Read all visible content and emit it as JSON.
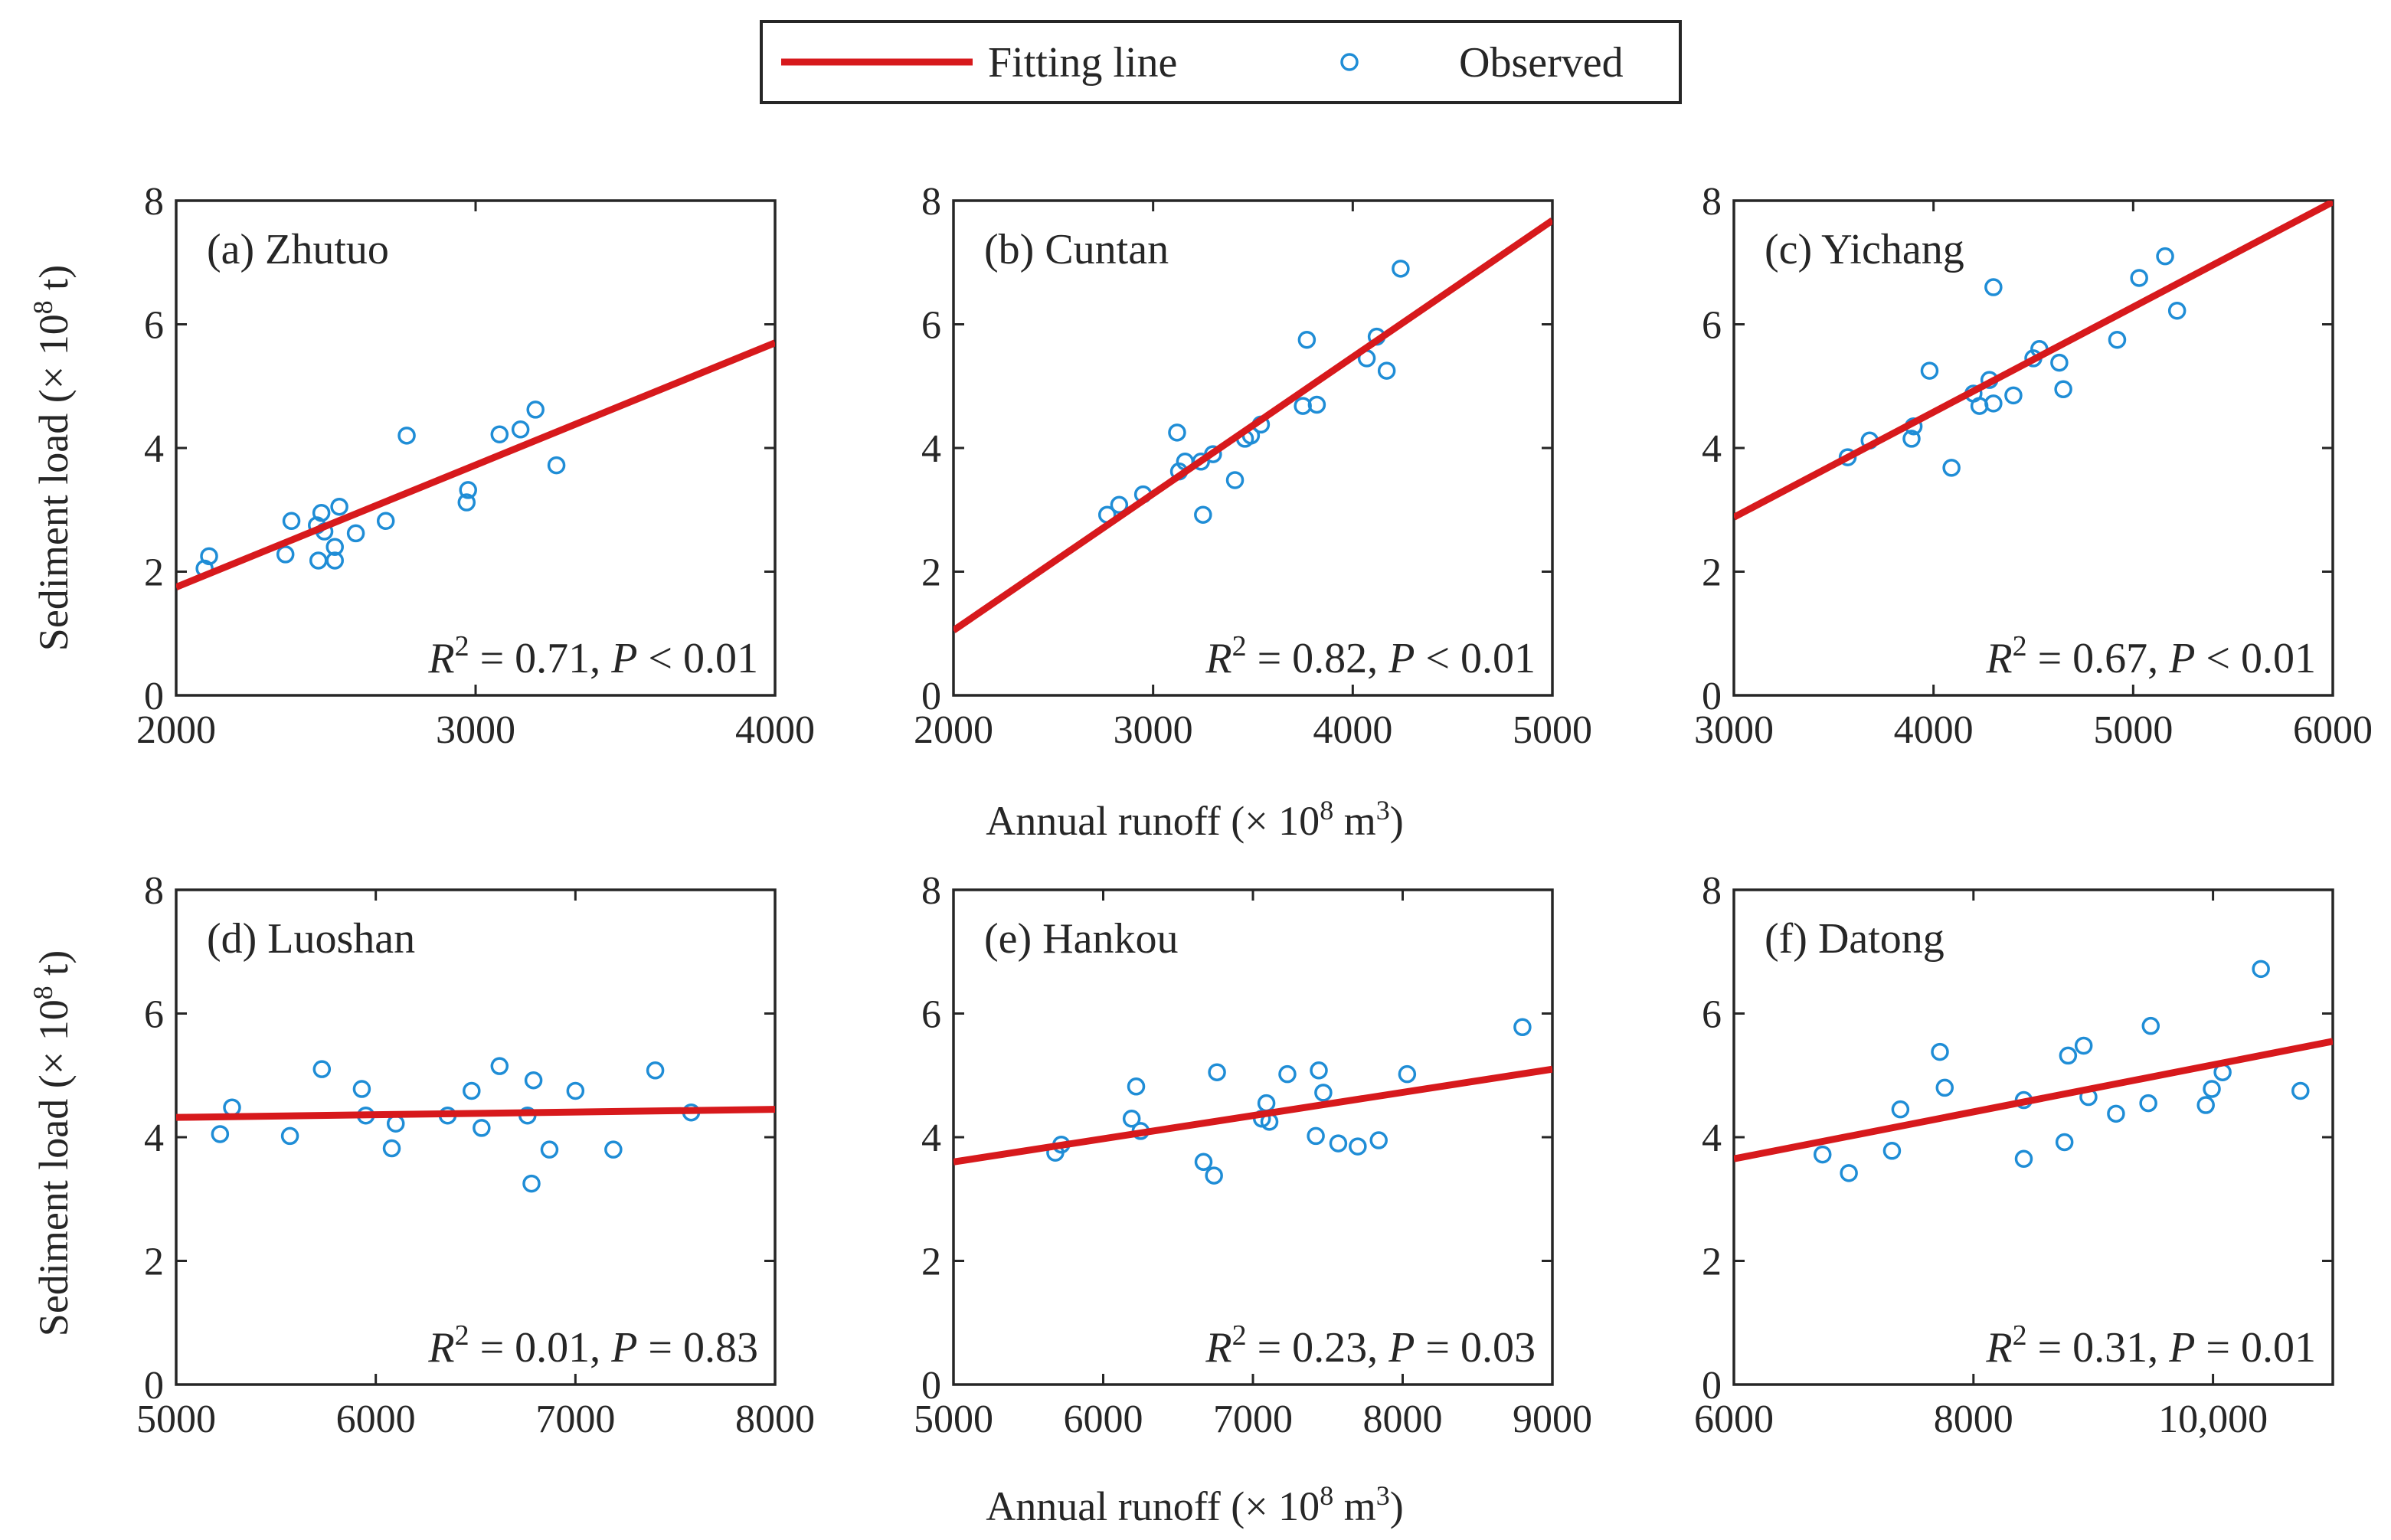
{
  "legend": {
    "fitting_label": "Fitting line",
    "observed_label": "Observed",
    "placement": "top-center"
  },
  "colors": {
    "fit_line": "#d7191c",
    "observed": "#1f8dd6",
    "axes": "#262626"
  },
  "axis_labels": {
    "y_prefix": "Sediment load (× 10",
    "y_sup": "8",
    "y_suffix": " t)",
    "x_prefix": "Annual runoff (× 10",
    "x_sup": "8",
    "x_mid": " m",
    "x_sup2": "3",
    "x_suffix": ")"
  },
  "chart_data": [
    {
      "type": "scatter",
      "title": "(a) Zhutuo",
      "xlim": [
        2000,
        4000
      ],
      "ylim": [
        0,
        8
      ],
      "xticks": [
        2000,
        3000,
        4000
      ],
      "xtick_labels": [
        "2000",
        "3000",
        "4000"
      ],
      "yticks": [
        0,
        2,
        4,
        6,
        8
      ],
      "ytick_labels": [
        "0",
        "2",
        "4",
        "6",
        "8"
      ],
      "fit": {
        "x": [
          2000,
          4000
        ],
        "y": [
          1.75,
          5.7
        ]
      },
      "r2_text": "0.71",
      "p_op": "<",
      "p_text": "0.01",
      "points": [
        [
          2095,
          2.05
        ],
        [
          2110,
          2.25
        ],
        [
          2365,
          2.28
        ],
        [
          2385,
          2.82
        ],
        [
          2470,
          2.75
        ],
        [
          2485,
          2.95
        ],
        [
          2495,
          2.65
        ],
        [
          2475,
          2.18
        ],
        [
          2530,
          2.4
        ],
        [
          2545,
          3.05
        ],
        [
          2530,
          2.18
        ],
        [
          2600,
          2.62
        ],
        [
          2700,
          2.82
        ],
        [
          2770,
          4.2
        ],
        [
          2970,
          3.12
        ],
        [
          2975,
          3.32
        ],
        [
          3080,
          4.22
        ],
        [
          3150,
          4.3
        ],
        [
          3200,
          4.62
        ],
        [
          3270,
          3.72
        ]
      ]
    },
    {
      "type": "scatter",
      "title": "(b) Cuntan",
      "xlim": [
        2000,
        5000
      ],
      "ylim": [
        0,
        8
      ],
      "xticks": [
        2000,
        3000,
        4000,
        5000
      ],
      "xtick_labels": [
        "2000",
        "3000",
        "4000",
        "5000"
      ],
      "yticks": [
        0,
        2,
        4,
        6,
        8
      ],
      "ytick_labels": [
        "0",
        "2",
        "4",
        "6",
        "8"
      ],
      "fit": {
        "x": [
          2000,
          5000
        ],
        "y": [
          1.05,
          7.68
        ]
      },
      "r2_text": "0.82",
      "p_op": "<",
      "p_text": "0.01",
      "points": [
        [
          2770,
          2.92
        ],
        [
          2830,
          3.08
        ],
        [
          2950,
          3.25
        ],
        [
          3120,
          4.25
        ],
        [
          3130,
          3.62
        ],
        [
          3160,
          3.78
        ],
        [
          3240,
          3.78
        ],
        [
          3250,
          2.92
        ],
        [
          3300,
          3.9
        ],
        [
          3410,
          3.48
        ],
        [
          3460,
          4.15
        ],
        [
          3490,
          4.2
        ],
        [
          3540,
          4.38
        ],
        [
          3750,
          4.68
        ],
        [
          3770,
          5.75
        ],
        [
          3820,
          4.7
        ],
        [
          4070,
          5.45
        ],
        [
          4120,
          5.8
        ],
        [
          4170,
          5.25
        ],
        [
          4240,
          6.9
        ]
      ]
    },
    {
      "type": "scatter",
      "title": "(c) Yichang",
      "xlim": [
        3000,
        6000
      ],
      "ylim": [
        0,
        8
      ],
      "xticks": [
        3000,
        4000,
        5000,
        6000
      ],
      "xtick_labels": [
        "3000",
        "4000",
        "5000",
        "6000"
      ],
      "yticks": [
        0,
        2,
        4,
        6,
        8
      ],
      "ytick_labels": [
        "0",
        "2",
        "4",
        "6",
        "8"
      ],
      "fit": {
        "x": [
          3000,
          6000
        ],
        "y": [
          2.88,
          7.98
        ]
      },
      "r2_text": "0.67",
      "p_op": "<",
      "p_text": "0.01",
      "points": [
        [
          3570,
          3.85
        ],
        [
          3680,
          4.12
        ],
        [
          3890,
          4.15
        ],
        [
          3900,
          4.35
        ],
        [
          3980,
          5.25
        ],
        [
          4090,
          3.68
        ],
        [
          4200,
          4.88
        ],
        [
          4230,
          4.68
        ],
        [
          4280,
          5.1
        ],
        [
          4300,
          4.72
        ],
        [
          4300,
          6.6
        ],
        [
          4400,
          4.85
        ],
        [
          4500,
          5.45
        ],
        [
          4530,
          5.6
        ],
        [
          4630,
          5.38
        ],
        [
          4650,
          4.95
        ],
        [
          4920,
          5.75
        ],
        [
          5030,
          6.75
        ],
        [
          5160,
          7.1
        ],
        [
          5220,
          6.22
        ]
      ]
    },
    {
      "type": "scatter",
      "title": "(d) Luoshan",
      "xlim": [
        5000,
        8000
      ],
      "ylim": [
        0,
        8
      ],
      "xticks": [
        5000,
        6000,
        7000,
        8000
      ],
      "xtick_labels": [
        "5000",
        "6000",
        "7000",
        "8000"
      ],
      "yticks": [
        0,
        2,
        4,
        6,
        8
      ],
      "ytick_labels": [
        "0",
        "2",
        "4",
        "6",
        "8"
      ],
      "fit": {
        "x": [
          5000,
          8000
        ],
        "y": [
          4.32,
          4.45
        ]
      },
      "r2_text": "0.01",
      "p_op": "=",
      "p_text": "0.83",
      "points": [
        [
          5220,
          4.05
        ],
        [
          5280,
          4.48
        ],
        [
          5570,
          4.02
        ],
        [
          5730,
          5.1
        ],
        [
          5930,
          4.78
        ],
        [
          5950,
          4.35
        ],
        [
          6080,
          3.82
        ],
        [
          6100,
          4.22
        ],
        [
          6360,
          4.35
        ],
        [
          6480,
          4.75
        ],
        [
          6530,
          4.15
        ],
        [
          6620,
          5.15
        ],
        [
          6760,
          4.35
        ],
        [
          6790,
          4.92
        ],
        [
          6780,
          3.25
        ],
        [
          6870,
          3.8
        ],
        [
          7000,
          4.75
        ],
        [
          7190,
          3.8
        ],
        [
          7400,
          5.08
        ],
        [
          7580,
          4.4
        ]
      ]
    },
    {
      "type": "scatter",
      "title": "(e) Hankou",
      "xlim": [
        5000,
        9000
      ],
      "ylim": [
        0,
        8
      ],
      "xticks": [
        5000,
        6000,
        7000,
        8000,
        9000
      ],
      "xtick_labels": [
        "5000",
        "6000",
        "7000",
        "8000",
        "9000"
      ],
      "yticks": [
        0,
        2,
        4,
        6,
        8
      ],
      "ytick_labels": [
        "0",
        "2",
        "4",
        "6",
        "8"
      ],
      "fit": {
        "x": [
          5000,
          9000
        ],
        "y": [
          3.6,
          5.1
        ]
      },
      "r2_text": "0.23",
      "p_op": "=",
      "p_text": "0.03",
      "points": [
        [
          5680,
          3.75
        ],
        [
          5720,
          3.88
        ],
        [
          6190,
          4.3
        ],
        [
          6220,
          4.82
        ],
        [
          6250,
          4.1
        ],
        [
          6670,
          3.6
        ],
        [
          6740,
          3.38
        ],
        [
          6760,
          5.05
        ],
        [
          7060,
          4.3
        ],
        [
          7090,
          4.55
        ],
        [
          7110,
          4.25
        ],
        [
          7230,
          5.02
        ],
        [
          7420,
          4.02
        ],
        [
          7440,
          5.08
        ],
        [
          7470,
          4.72
        ],
        [
          7570,
          3.9
        ],
        [
          7700,
          3.85
        ],
        [
          7840,
          3.95
        ],
        [
          8030,
          5.02
        ],
        [
          8800,
          5.78
        ]
      ]
    },
    {
      "type": "scatter",
      "title": "(f) Datong",
      "xlim": [
        6000,
        11000
      ],
      "ylim": [
        0,
        8
      ],
      "xticks": [
        6000,
        8000,
        10000
      ],
      "xtick_labels": [
        "6000",
        "8000",
        "10,000"
      ],
      "yticks": [
        0,
        2,
        4,
        6,
        8
      ],
      "ytick_labels": [
        "0",
        "2",
        "4",
        "6",
        "8"
      ],
      "fit": {
        "x": [
          6000,
          11000
        ],
        "y": [
          3.65,
          5.55
        ]
      },
      "r2_text": "0.31",
      "p_op": "=",
      "p_text": "0.01",
      "points": [
        [
          6740,
          3.72
        ],
        [
          6960,
          3.42
        ],
        [
          7320,
          3.78
        ],
        [
          7390,
          4.45
        ],
        [
          7720,
          5.38
        ],
        [
          7760,
          4.8
        ],
        [
          8420,
          3.65
        ],
        [
          8420,
          4.6
        ],
        [
          8760,
          3.92
        ],
        [
          8790,
          5.32
        ],
        [
          8920,
          5.48
        ],
        [
          8960,
          4.65
        ],
        [
          9190,
          4.38
        ],
        [
          9460,
          4.55
        ],
        [
          9480,
          5.8
        ],
        [
          9940,
          4.52
        ],
        [
          9990,
          4.78
        ],
        [
          10080,
          5.05
        ],
        [
          10400,
          6.72
        ],
        [
          10730,
          4.75
        ]
      ]
    }
  ]
}
